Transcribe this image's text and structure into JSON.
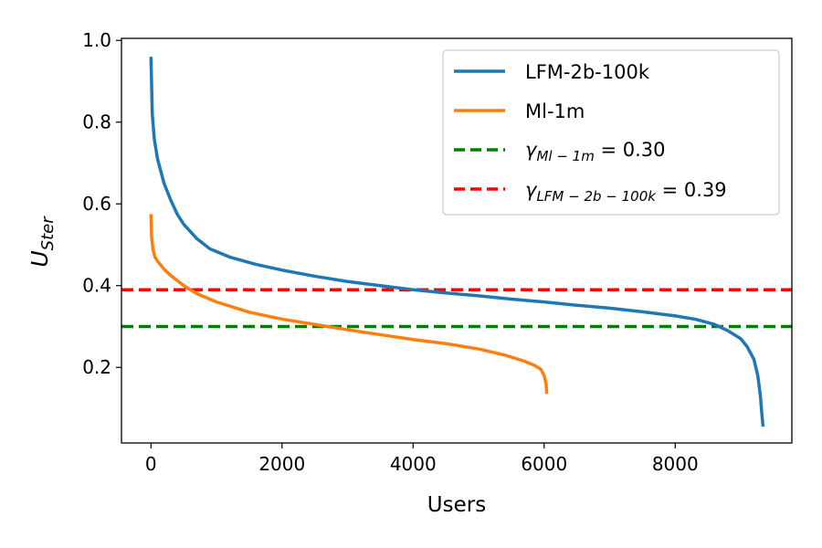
{
  "chart_data": {
    "type": "line",
    "title": "",
    "xlabel": "Users",
    "ylabel": "U",
    "ylabel_sub": "Ster",
    "xlim": [
      -450,
      9780
    ],
    "ylim": [
      0.015,
      1.005
    ],
    "xticks": [
      0,
      2000,
      4000,
      6000,
      8000
    ],
    "yticks": [
      0.2,
      0.4,
      0.6,
      0.8,
      1.0
    ],
    "xtick_labels": [
      "0",
      "2000",
      "4000",
      "6000",
      "8000"
    ],
    "ytick_labels": [
      "0.2",
      "0.4",
      "0.6",
      "0.8",
      "1.0"
    ],
    "grid": false,
    "legend_position": "top-right",
    "series": [
      {
        "name": "LFM-2b-100k",
        "color": "#1f77b4",
        "style": "solid",
        "x": [
          0,
          20,
          50,
          100,
          200,
          300,
          400,
          500,
          700,
          900,
          1200,
          1600,
          2000,
          2500,
          3000,
          3500,
          4000,
          4500,
          5000,
          5500,
          6000,
          6500,
          7000,
          7500,
          8000,
          8300,
          8600,
          8800,
          9000,
          9100,
          9200,
          9260,
          9300,
          9320,
          9340
        ],
        "y": [
          0.96,
          0.82,
          0.76,
          0.71,
          0.65,
          0.61,
          0.575,
          0.55,
          0.515,
          0.49,
          0.47,
          0.452,
          0.438,
          0.423,
          0.41,
          0.4,
          0.39,
          0.382,
          0.375,
          0.367,
          0.36,
          0.352,
          0.345,
          0.336,
          0.326,
          0.318,
          0.305,
          0.29,
          0.27,
          0.25,
          0.22,
          0.18,
          0.13,
          0.09,
          0.055
        ]
      },
      {
        "name": "Ml-1m",
        "color": "#ff7f0e",
        "style": "solid",
        "x": [
          0,
          10,
          30,
          60,
          100,
          200,
          300,
          500,
          700,
          1000,
          1500,
          2000,
          2500,
          3000,
          3500,
          4000,
          4500,
          5000,
          5400,
          5700,
          5850,
          5950,
          6000,
          6030,
          6040
        ],
        "y": [
          0.575,
          0.52,
          0.49,
          0.47,
          0.46,
          0.44,
          0.425,
          0.4,
          0.38,
          0.36,
          0.335,
          0.318,
          0.305,
          0.292,
          0.28,
          0.268,
          0.258,
          0.245,
          0.23,
          0.215,
          0.205,
          0.195,
          0.18,
          0.16,
          0.135
        ]
      },
      {
        "name": "γ_{Ml-1m} = 0.30",
        "color": "#008000",
        "style": "dashed",
        "hline": 0.3
      },
      {
        "name": "γ_{LFM-2b-100k} = 0.39",
        "color": "#ff0000",
        "style": "dashed",
        "hline": 0.39
      }
    ]
  },
  "legend": [
    {
      "main": "LFM-2b-100k",
      "sub": "",
      "suffix": ""
    },
    {
      "main": "Ml-1m",
      "sub": "",
      "suffix": ""
    },
    {
      "main": "γ",
      "sub": "Ml − 1m",
      "suffix": " = 0.30"
    },
    {
      "main": "γ",
      "sub": "LFM − 2b − 100k",
      "suffix": " = 0.39"
    }
  ]
}
